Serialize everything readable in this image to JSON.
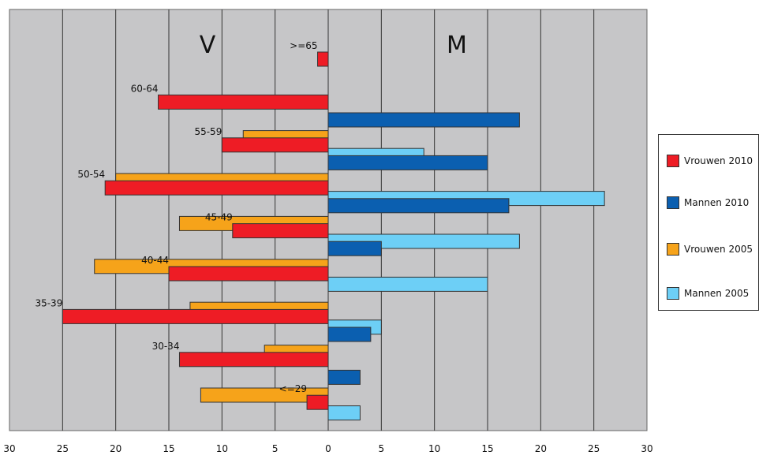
{
  "chart_data": {
    "type": "bar",
    "orientation": "horizontal",
    "side_labels": {
      "left": "V",
      "right": "M"
    },
    "xlim": [
      -30,
      30
    ],
    "x_ticks": [
      30,
      25,
      20,
      15,
      10,
      5,
      0,
      5,
      10,
      15,
      20,
      25,
      30
    ],
    "grid": true,
    "legend_position": "right",
    "categories": [
      ">=65",
      "60-64",
      "55-59",
      "50-54",
      "45-49",
      "40-44",
      "35-39",
      "30-34",
      "<=29"
    ],
    "series": [
      {
        "name": "Vrouwen 2010",
        "side": "left",
        "color": "#ee1c25",
        "values": [
          1,
          16,
          10,
          21,
          9,
          15,
          25,
          14,
          2
        ]
      },
      {
        "name": "Mannen 2010",
        "side": "right",
        "color": "#0b5fb0",
        "values": [
          0,
          18,
          15,
          17,
          5,
          0,
          4,
          3,
          0
        ]
      },
      {
        "name": "Vrouwen 2005",
        "side": "left",
        "color": "#f6a31a",
        "values": [
          0,
          8,
          20,
          14,
          22,
          13,
          6,
          12,
          0
        ]
      },
      {
        "name": "Mannen 2005",
        "side": "right",
        "color": "#6dcff6",
        "values": [
          0,
          9,
          26,
          18,
          15,
          5,
          0,
          3,
          0
        ]
      }
    ],
    "legend_order": [
      "Vrouwen 2010",
      "Mannen 2010",
      "Vrouwen 2005",
      "Mannen 2005"
    ]
  }
}
